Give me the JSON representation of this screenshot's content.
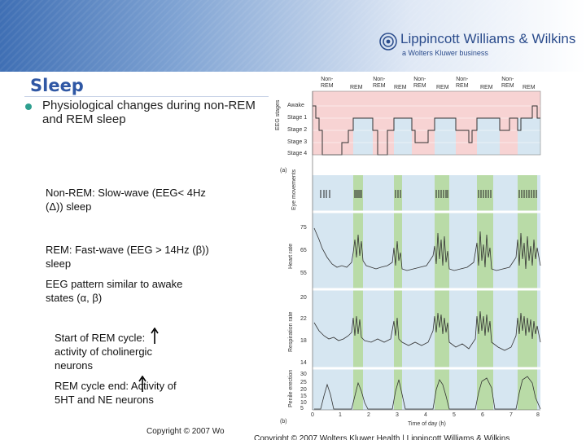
{
  "header": {
    "publisher": "Lippincott Williams & Wilkins",
    "subtitle": "a Wolters Kluwer business"
  },
  "slide": {
    "title": "Sleep",
    "bullet": "Physiological changes during non-REM and REM sleep",
    "notes": [
      "Non-REM:  Slow-wave (EEG< 4Hz (Δ)) sleep",
      "REM:  Fast-wave (EEG > 14Hz (β)) sleep",
      "EEG pattern similar to awake states  (α, β)",
      "Start of REM cycle:    activity of cholinergic neurons",
      "REM cycle end:    Activity of 5HT and NE neurons"
    ],
    "footer_left": "Copyright © 2007 Wo",
    "footer_right": "Copyright © 2007 Wolters Kluwer Health | Lippincott Williams & Wilkins"
  },
  "figure": {
    "stage_headers": [
      "Non-\nREM",
      "REM",
      "Non-\nREM",
      "REM",
      "Non-\nREM",
      "REM",
      "Non-\nREM",
      "REM",
      "Non-\nREM",
      "REM"
    ],
    "eeg_axis_title": "EEG stages",
    "eeg_levels": [
      "Awake",
      "Stage 1",
      "Stage 2",
      "Stage 3",
      "Stage 4"
    ],
    "panel_a_label": "(a)",
    "panel_b_label": "(b)",
    "eye_title": "Eye movements",
    "heart_title": "Heart rate",
    "heart_ticks": [
      "75",
      "65",
      "55"
    ],
    "resp_title": "Respiration rate",
    "resp_ticks": [
      "22",
      "18",
      "14",
      "20"
    ],
    "penile_title": "Penile erection",
    "penile_ticks": [
      "30",
      "20",
      "10",
      "0",
      "25",
      "15",
      "5"
    ],
    "x_ticks": [
      "0",
      "1",
      "2",
      "3",
      "4",
      "5",
      "6",
      "7",
      "8"
    ],
    "x_label": "Time of day (h)",
    "colors": {
      "pink": "#f7d3d3",
      "blue": "#d6e6f1",
      "green": "#b9dba7",
      "trace": "#333333"
    }
  }
}
